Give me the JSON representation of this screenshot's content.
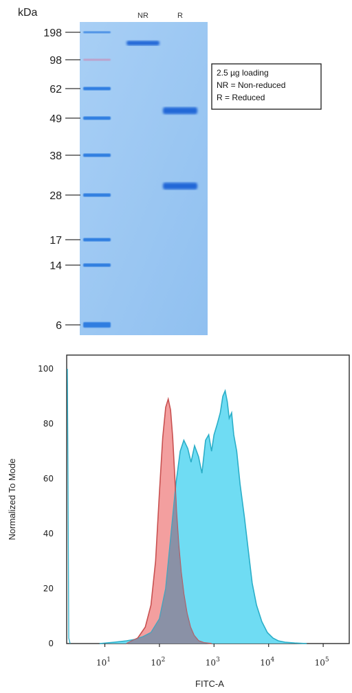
{
  "chart_data": [
    {
      "type": "gel",
      "ylabel": "kDa",
      "lanes": [
        "NR",
        "R"
      ],
      "marker_kda": [
        "198",
        "98",
        "62",
        "49",
        "38",
        "28",
        "17",
        "14",
        "6"
      ],
      "legend": [
        "2.5 µg loading",
        "NR = Non-reduced",
        "R = Reduced"
      ],
      "bands": [
        {
          "lane": "NR",
          "kda": 150
        },
        {
          "lane": "R",
          "kda": 52
        },
        {
          "lane": "R",
          "kda": 30
        }
      ],
      "colors": {
        "gel": "#9cc7f2",
        "band": "#1f63d6",
        "marker": "#2a7ae0"
      }
    },
    {
      "type": "area",
      "xlabel": "FITC-A",
      "ylabel": "Normalized To Mode",
      "x_scale": "log",
      "xlim": [
        2,
        300000
      ],
      "ylim": [
        0,
        105
      ],
      "ytick_labels": [
        "0",
        "20",
        "40",
        "60",
        "80",
        "100"
      ],
      "xtick_labels": [
        {
          "base": "10",
          "exp": "1"
        },
        {
          "base": "10",
          "exp": "2"
        },
        {
          "base": "10",
          "exp": "3"
        },
        {
          "base": "10",
          "exp": "4"
        },
        {
          "base": "10",
          "exp": "5"
        }
      ],
      "series": [
        {
          "color": "#f08a8a",
          "line_color": "#c85050",
          "x": [
            25,
            40,
            55,
            70,
            85,
            100,
            115,
            130,
            145,
            160,
            175,
            190,
            205,
            225,
            250,
            280,
            320,
            370,
            430,
            520,
            650,
            900
          ],
          "y": [
            0,
            2,
            6,
            14,
            30,
            55,
            75,
            86,
            89,
            85,
            75,
            62,
            48,
            36,
            26,
            18,
            11,
            6,
            3,
            1,
            0.3,
            0
          ]
        },
        {
          "color": "#5fd8f2",
          "line_color": "#2aaec8",
          "x": [
            8,
            15,
            25,
            35,
            50,
            70,
            100,
            130,
            160,
            200,
            240,
            280,
            330,
            380,
            440,
            520,
            600,
            700,
            800,
            900,
            1000,
            1150,
            1300,
            1450,
            1600,
            1750,
            1900,
            2100,
            2300,
            2600,
            3000,
            3600,
            4300,
            5000,
            6000,
            7500,
            9500,
            12000,
            15000,
            20000,
            30000,
            50000
          ],
          "y": [
            0,
            0.5,
            1,
            1.5,
            2.5,
            4,
            9,
            20,
            38,
            58,
            70,
            74,
            71,
            66,
            72,
            68,
            62,
            74,
            76,
            70,
            76,
            80,
            84,
            90,
            92,
            88,
            82,
            84,
            76,
            70,
            58,
            46,
            33,
            22,
            14,
            8,
            4,
            2,
            1,
            0.5,
            0.2,
            0
          ]
        }
      ]
    }
  ]
}
